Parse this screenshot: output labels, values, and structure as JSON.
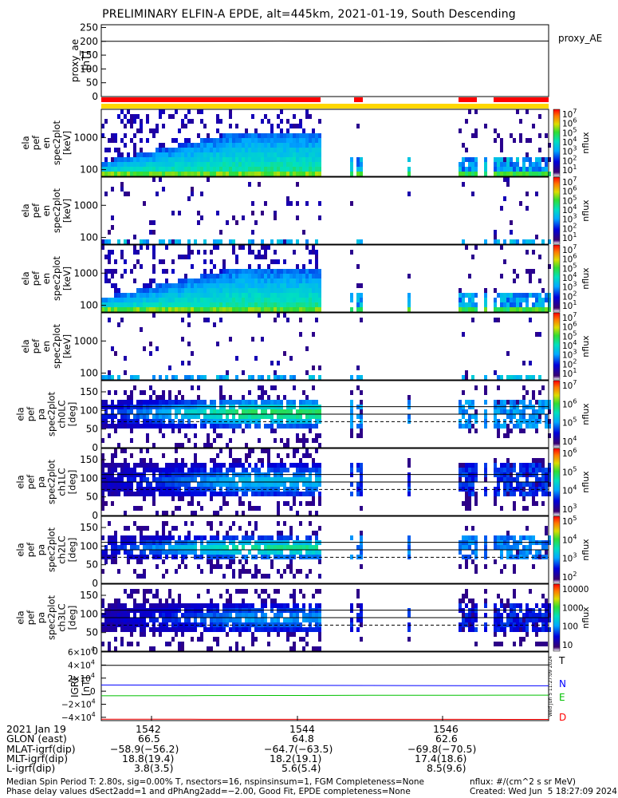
{
  "title": "PRELIMINARY ELFIN-A EPDE, alt=445km, 2021-01-19, South Descending",
  "colors": {
    "red_bar": "#ff0000",
    "yellow_bar": "#ffd700",
    "T": "#000000",
    "N": "#0000ff",
    "E": "#00c000",
    "D": "#ff0000"
  },
  "chart_data": [
    {
      "type": "line",
      "panel": "proxy_ae",
      "ylabel": [
        "proxy_ae",
        "[nT]"
      ],
      "legend": "proxy_AE",
      "y_ticks": [
        "250",
        "200",
        "150",
        "100",
        "50",
        "0"
      ],
      "ylim": [
        0,
        260
      ],
      "series": [
        {
          "values": [
            200,
            200,
            201,
            200,
            201,
            201
          ]
        }
      ]
    },
    {
      "type": "heatmap",
      "panel": "pef_en_spec2plot_omni",
      "ylabel": [
        "ela",
        "pef",
        "en",
        "spec2plot",
        "[keV]"
      ],
      "y_ticks": [
        "1000",
        "100"
      ],
      "scale": "log",
      "colorbar_ticks": [
        "10^7",
        "10^6",
        "10^5",
        "10^4",
        "10^3",
        "10^2",
        "10^1"
      ],
      "colorbar_label": "nflux"
    },
    {
      "type": "heatmap",
      "panel": "pef_en_spec2plot_anti",
      "ylabel": [
        "ela",
        "pef",
        "en",
        "spec2plot",
        "[keV]"
      ],
      "y_ticks": [
        "1000",
        "100"
      ],
      "scale": "log",
      "colorbar_ticks": [
        "10^7",
        "10^6",
        "10^5",
        "10^4",
        "10^3",
        "10^2",
        "10^1"
      ],
      "colorbar_label": "nflux"
    },
    {
      "type": "heatmap",
      "panel": "pef_en_spec2plot_perp",
      "ylabel": [
        "ela",
        "pef",
        "en",
        "spec2plot",
        "[keV]"
      ],
      "y_ticks": [
        "1000",
        "100"
      ],
      "scale": "log",
      "colorbar_ticks": [
        "10^7",
        "10^6",
        "10^5",
        "10^4",
        "10^3",
        "10^2",
        "10^1"
      ],
      "colorbar_label": "nflux"
    },
    {
      "type": "heatmap",
      "panel": "pef_en_spec2plot_para",
      "ylabel": [
        "ela",
        "pef",
        "en",
        "spec2plot",
        "[keV]"
      ],
      "y_ticks": [
        "1000",
        "100"
      ],
      "scale": "log",
      "colorbar_ticks": [
        "10^7",
        "10^6",
        "10^5",
        "10^4",
        "10^3",
        "10^2",
        "10^1"
      ],
      "colorbar_label": "nflux"
    },
    {
      "type": "heatmap",
      "panel": "pef_pa_spec2plot_ch0LC",
      "ylabel": [
        "ela",
        "pef",
        "pa",
        "spec2plot",
        "ch0LC",
        "[deg]"
      ],
      "y_ticks": [
        "150",
        "100",
        "50",
        "0"
      ],
      "ylim": [
        0,
        180
      ],
      "colorbar_ticks": [
        "10^7",
        "10^6",
        "10^5",
        "10^4"
      ],
      "colorbar_label": "nflux"
    },
    {
      "type": "heatmap",
      "panel": "pef_pa_spec2plot_ch1LC",
      "ylabel": [
        "ela",
        "pef",
        "pa",
        "spec2plot",
        "ch1LC",
        "[deg]"
      ],
      "y_ticks": [
        "150",
        "100",
        "50",
        "0"
      ],
      "ylim": [
        0,
        180
      ],
      "colorbar_ticks": [
        "10^6",
        "10^5",
        "10^4",
        "10^3"
      ],
      "colorbar_label": "nflux"
    },
    {
      "type": "heatmap",
      "panel": "pef_pa_spec2plot_ch2LC",
      "ylabel": [
        "ela",
        "pef",
        "pa",
        "spec2plot",
        "ch2LC",
        "[deg]"
      ],
      "y_ticks": [
        "150",
        "100",
        "50",
        "0"
      ],
      "ylim": [
        0,
        180
      ],
      "colorbar_ticks": [
        "10^5",
        "10^4",
        "10^3",
        "10^2"
      ],
      "colorbar_label": "nflux"
    },
    {
      "type": "heatmap",
      "panel": "pef_pa_spec2plot_ch3LC",
      "ylabel": [
        "ela",
        "pef",
        "pa",
        "spec2plot",
        "ch3LC",
        "[deg]"
      ],
      "y_ticks": [
        "150",
        "100",
        "50",
        "0"
      ],
      "ylim": [
        0,
        180
      ],
      "colorbar_ticks": [
        "10000",
        "1000",
        "100",
        "10"
      ],
      "colorbar_label": "nflux"
    },
    {
      "type": "line",
      "panel": "igrf",
      "ylabel": [
        "IGRF",
        "[nT]"
      ],
      "y_ticks": [
        "6×10^4",
        "4×10^4",
        "2×10^4",
        "0",
        "−2×10^4",
        "−4×10^4"
      ],
      "ylim": [
        -45000,
        60000
      ],
      "side_note": "Wed Jun  5 11:27:09 2024",
      "series": [
        {
          "name": "T",
          "values": [
            39500,
            39600,
            39800,
            40000,
            40100,
            40200
          ]
        },
        {
          "name": "N",
          "values": [
            9500,
            9300,
            9000,
            8700,
            8400,
            8200
          ]
        },
        {
          "name": "E",
          "values": [
            -7000,
            -6800,
            -6500,
            -6300,
            -6200,
            -6100
          ]
        },
        {
          "name": "D",
          "values": [
            -42800,
            -42900,
            -43000,
            -43100,
            -43100,
            -43200
          ]
        }
      ]
    }
  ],
  "orbit_table": {
    "time_label": "2021 Jan 19",
    "times": [
      "1542",
      "1544",
      "1546"
    ],
    "rows": [
      {
        "label": "GLON (east)",
        "values": [
          "66.5",
          "64.8",
          "62.6"
        ]
      },
      {
        "label": "MLAT-igrf(dip)",
        "values": [
          "−58.9(−56.2)",
          "−64.7(−63.5)",
          "−69.8(−70.5)"
        ]
      },
      {
        "label": "MLT-igrf(dip)",
        "values": [
          "18.8(19.4)",
          "18.2(19.1)",
          "17.4(18.6)"
        ]
      },
      {
        "label": "L-igrf(dip)",
        "values": [
          "3.8(3.5)",
          "5.6(5.4)",
          "8.5(9.6)"
        ]
      }
    ]
  },
  "footer": {
    "line1": "Median Spin Period T: 2.80s, sig=0.00% T, nsectors=16, nspinsinsum=1, FGM Completeness=None",
    "line2": "Phase delay values dSect2add=1 and dPhAng2add=−2.00, Good Fit, EPDE completeness=None",
    "units": "nflux: #/(cm^2 s sr MeV)",
    "created": "Created: Wed Jun  5 18:27:09 2024"
  }
}
